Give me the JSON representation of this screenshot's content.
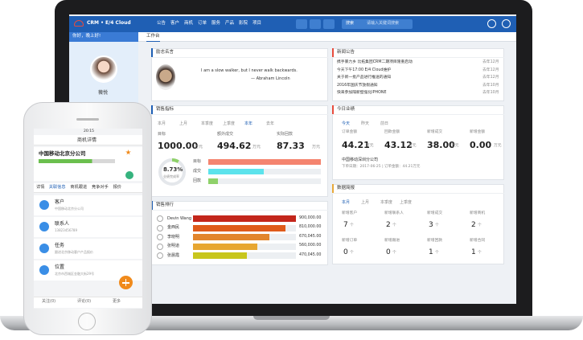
{
  "nav": {
    "logo": "CRM • E/4 Cloud",
    "items": [
      "公告",
      "客户",
      "商机",
      "订单",
      "服务",
      "产品",
      "影院",
      "项目"
    ],
    "search": "搜索",
    "search_placeholder": "请输入关键词搜索"
  },
  "sidebar": {
    "greeting": "你好，晚上好!",
    "user": "薇悦"
  },
  "tab": "工作台",
  "quote": {
    "title": "励志名言",
    "text": "I am a slow walker, but I never walk backwards.",
    "author": "— Abraham Lincoln"
  },
  "news": {
    "title": "新闻公告",
    "items": [
      {
        "text": "携手暴力乡 比拓集团CRM二期项目隆重启动",
        "date": "去年12月"
      },
      {
        "text": "今天下午17:00 E/4 Cloud维护",
        "date": "去年12月"
      },
      {
        "text": "关于新一批产品进行推送的通知",
        "date": "去年12月"
      },
      {
        "text": "2016年国庆节放假通知",
        "date": "去年10月"
      },
      {
        "text": "快来参加隔新壁强化IPHONE",
        "date": "去年10月"
      }
    ]
  },
  "sales": {
    "title": "销售指标",
    "periods": [
      "本月",
      "上月",
      "本季度",
      "上季度",
      "本年",
      "去年"
    ],
    "active_period": 4,
    "metrics": [
      {
        "label": "目标",
        "value": {
          "value": 1000,
          "label": "1000.00"
        },
        "unit": "万元"
      },
      {
        "label": "额外成交",
        "value": 494.62,
        "unit": "万元"
      },
      {
        "label": "实际回款",
        "value": 87.33,
        "unit": "万元"
      }
    ],
    "rate": {
      "value": 8.73,
      "label": "8.73%"
    },
    "rate_label": "业绩完成率",
    "bar_labels": [
      "目标",
      "成交",
      "回款"
    ],
    "bar_colors": [
      "#f4846f",
      "#5ce3ec",
      "#8fd16a"
    ]
  },
  "today": {
    "title": "今日业绩",
    "tabs": [
      "今天",
      "昨天",
      "前日"
    ],
    "metrics": [
      {
        "label": "订单金额",
        "value": "44.21",
        "unit": "万元"
      },
      {
        "label": "回款金额",
        "value": "43.12",
        "unit": "万元"
      },
      {
        "label": "新增成交",
        "value": "38.00",
        "unit": "万元"
      },
      {
        "label": "新增金额",
        "value": "0.00",
        "unit": "万元"
      }
    ],
    "company": "中国移动深圳分公司",
    "detail": "下单日期：2017-06-25 | 订单金额：44.21万元"
  },
  "ranking": {
    "title": "销售排行",
    "items": [
      {
        "name": "Devin Wang",
        "amount": {
          "value": 900000,
          "label": "900,000.00"
        },
        "color": "#c3261b"
      },
      {
        "name": "金西民",
        "amount": {
          "value": 810000,
          "label": "810,000.00"
        },
        "color": "#df5b1b"
      },
      {
        "name": "李晓明",
        "amount": {
          "value": 670045,
          "label": "670,045.00"
        },
        "color": "#e2852c"
      },
      {
        "name": "张明道",
        "amount": {
          "value": 560000,
          "label": "560,000.00"
        },
        "color": "#e7a631"
      },
      {
        "name": "张晨霞",
        "amount": {
          "value": 470045,
          "label": "470,045.00"
        },
        "color": "#c8c61d"
      }
    ]
  },
  "brief": {
    "title": "数据简报",
    "tabs": [
      "本月",
      "上月",
      "本季度",
      "上季度"
    ],
    "items": [
      {
        "label": "新增客户",
        "value": "7",
        "unit": "个"
      },
      {
        "label": "新增联系人",
        "value": "2",
        "unit": "个"
      },
      {
        "label": "新增成交",
        "value": "3",
        "unit": "个"
      },
      {
        "label": "新增商机",
        "value": "2",
        "unit": "个"
      },
      {
        "label": "新增订单",
        "value": "0",
        "unit": "个"
      },
      {
        "label": "新增跟进",
        "value": "0",
        "unit": "个"
      },
      {
        "label": "新增回款",
        "value": "1",
        "unit": "个"
      },
      {
        "label": "新增合同",
        "value": "1",
        "unit": "个"
      }
    ]
  },
  "phone": {
    "time": "20:15",
    "title": "商机详情",
    "company": "中国移动北京分公司",
    "tabs": [
      "详情",
      "关联信息",
      "商机跟进",
      "竞争对手",
      "报价"
    ],
    "active_tab": 1,
    "list": [
      {
        "label": "客户",
        "sub": "中国移动北京分公司"
      },
      {
        "label": "联系人",
        "sub": "13823456789"
      },
      {
        "label": "任务",
        "sub": "跟进北京移动客户产品报价"
      },
      {
        "label": "位置",
        "sub": "北京市西城区金融大街29号"
      }
    ],
    "footer": [
      "关注(0)",
      "评论(0)",
      "更多"
    ]
  }
}
